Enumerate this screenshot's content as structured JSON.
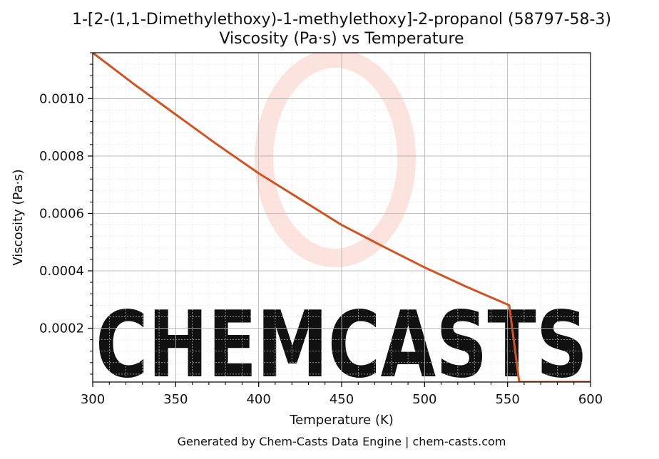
{
  "chart_data": {
    "type": "line",
    "title_line1": "1-[2-(1,1-Dimethylethoxy)-1-methylethoxy]-2-propanol (58797-58-3)",
    "title_line2": "Viscosity (Pa·s) vs Temperature",
    "xlabel": "Temperature (K)",
    "ylabel": "Viscosity (Pa·s)",
    "xlim": [
      300,
      600
    ],
    "ylim": [
      1.25e-05,
      0.00116
    ],
    "x_ticks": [
      300,
      350,
      400,
      450,
      500,
      550,
      600
    ],
    "x_tick_labels": [
      "300",
      "350",
      "400",
      "450",
      "500",
      "550",
      "600"
    ],
    "y_ticks": [
      0.0002,
      0.0004,
      0.0006,
      0.0008,
      0.001
    ],
    "y_tick_labels": [
      "0.0002",
      "0.0004",
      "0.0006",
      "0.0008",
      "0.0010"
    ],
    "grid": true,
    "line_color": "#d4521f",
    "series": [
      {
        "x": [
          300,
          325,
          350,
          375,
          400,
          425,
          450,
          475,
          500,
          525,
          551,
          557,
          560,
          580,
          600
        ],
        "y": [
          0.00116,
          0.00105,
          0.000945,
          0.00084,
          0.00074,
          0.00065,
          0.00056,
          0.000485,
          0.000412,
          0.000345,
          0.00028,
          1.25e-05,
          1.25e-05,
          1.25e-05,
          1.25e-05
        ]
      }
    ]
  },
  "watermark": {
    "text": "CHEMCASTS",
    "color": "#fcd9d2"
  },
  "footer": "Generated by Chem-Casts Data Engine | chem-casts.com"
}
